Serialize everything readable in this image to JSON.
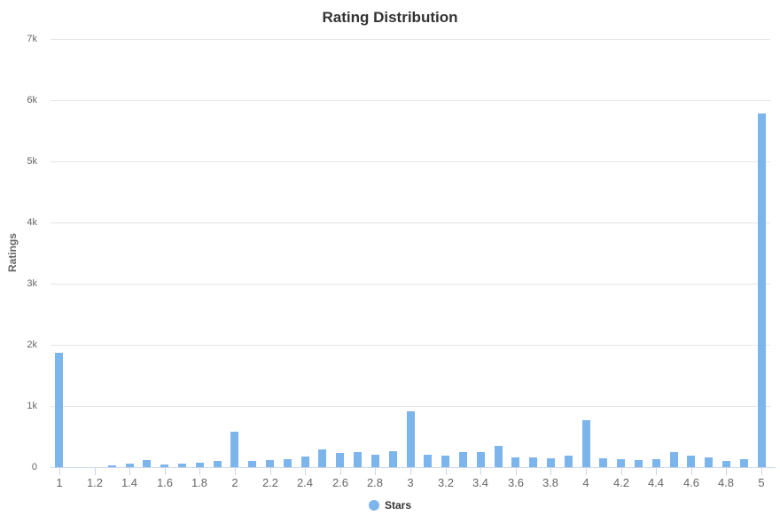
{
  "title": "Rating Distribution",
  "y_axis": {
    "title": "Ratings",
    "tick_labels": [
      "0",
      "1k",
      "2k",
      "3k",
      "4k",
      "5k",
      "6k",
      "7k"
    ],
    "tick_values": [
      0,
      1000,
      2000,
      3000,
      4000,
      5000,
      6000,
      7000
    ]
  },
  "x_axis": {
    "tick_labels": [
      "1",
      "1.2",
      "1.4",
      "1.6",
      "1.8",
      "2",
      "2.2",
      "2.4",
      "2.6",
      "2.8",
      "3",
      "3.2",
      "3.4",
      "3.6",
      "3.8",
      "4",
      "4.2",
      "4.4",
      "4.6",
      "4.8",
      "5"
    ],
    "tick_values": [
      1,
      1.2,
      1.4,
      1.6,
      1.8,
      2,
      2.2,
      2.4,
      2.6,
      2.8,
      3,
      3.2,
      3.4,
      3.6,
      3.8,
      4,
      4.2,
      4.4,
      4.6,
      4.8,
      5
    ]
  },
  "legend": {
    "label": "Stars"
  },
  "colors": {
    "bar": "#7cb5ec",
    "gridline": "#e6e6e6",
    "axis_line": "#ccd6eb",
    "tick_label": "#666666",
    "title_text": "#333333",
    "legend_text": "#333333",
    "background": "#ffffff"
  },
  "chart_data": {
    "type": "bar",
    "title": "Rating Distribution",
    "xlabel": "",
    "ylabel": "Ratings",
    "legend_position": "bottom",
    "grid": true,
    "xlim": [
      0.95,
      5.05
    ],
    "ylim": [
      0,
      7000
    ],
    "series": [
      {
        "name": "Stars",
        "x": [
          1.0,
          1.1,
          1.2,
          1.3,
          1.4,
          1.5,
          1.6,
          1.7,
          1.8,
          1.9,
          2.0,
          2.1,
          2.2,
          2.3,
          2.4,
          2.5,
          2.6,
          2.7,
          2.8,
          2.9,
          3.0,
          3.1,
          3.2,
          3.3,
          3.4,
          3.5,
          3.6,
          3.7,
          3.8,
          3.9,
          4.0,
          4.1,
          4.2,
          4.3,
          4.4,
          4.5,
          4.6,
          4.7,
          4.8,
          4.9,
          5.0
        ],
        "values": [
          1870,
          0,
          0,
          30,
          60,
          120,
          50,
          55,
          75,
          95,
          580,
          100,
          115,
          130,
          175,
          290,
          230,
          245,
          205,
          260,
          920,
          200,
          190,
          250,
          250,
          350,
          160,
          160,
          145,
          185,
          770,
          150,
          135,
          115,
          130,
          240,
          190,
          155,
          105,
          125,
          5780
        ]
      }
    ]
  }
}
